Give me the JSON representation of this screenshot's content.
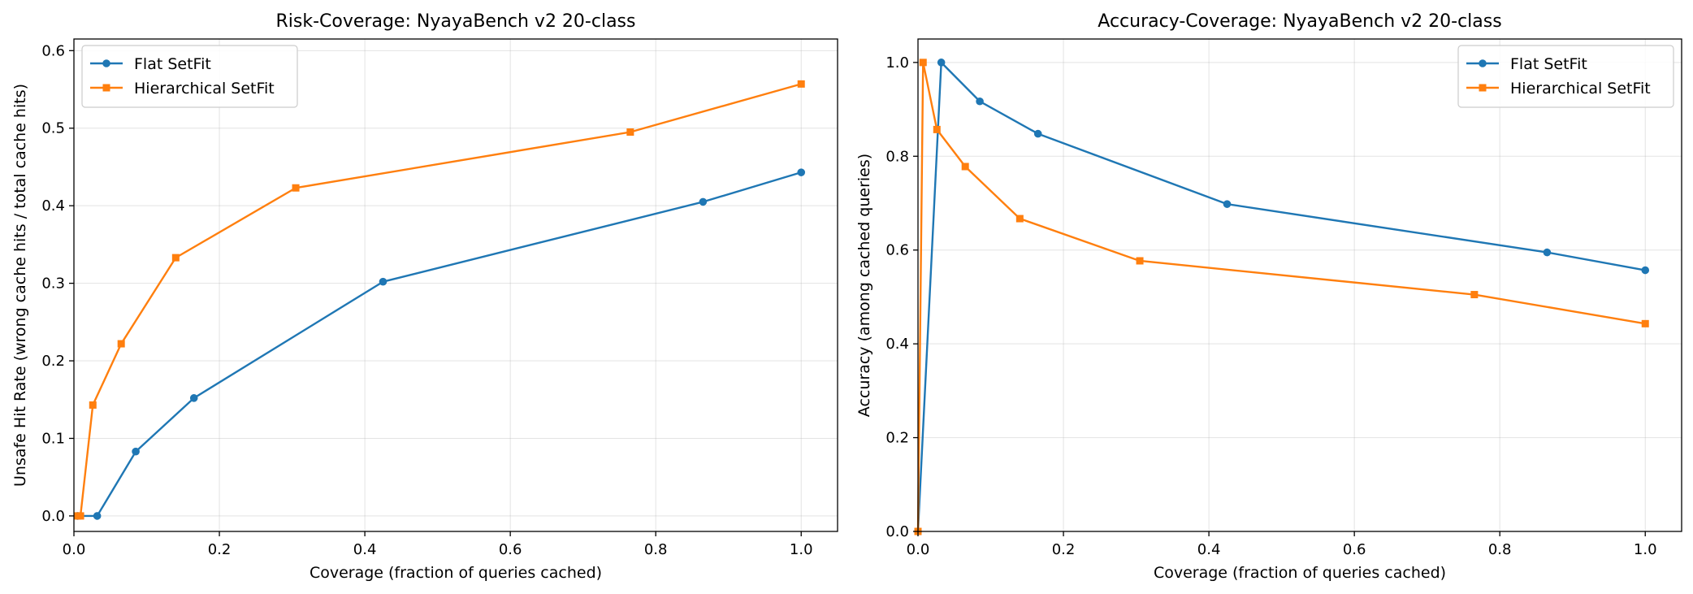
{
  "chart_data": [
    {
      "type": "line",
      "title": "Risk-Coverage: NyayaBench v2 20-class",
      "xlabel": "Coverage (fraction of queries cached)",
      "ylabel": "Unsafe Hit Rate (wrong cache hits / total cache hits)",
      "xlim": [
        0.0,
        1.05
      ],
      "ylim": [
        -0.02,
        0.615
      ],
      "xticks": [
        0.0,
        0.2,
        0.4,
        0.6,
        0.8,
        1.0
      ],
      "xtick_labels": [
        "0.0",
        "0.2",
        "0.4",
        "0.6",
        "0.8",
        "1.0"
      ],
      "yticks": [
        0.0,
        0.1,
        0.2,
        0.3,
        0.4,
        0.5,
        0.6
      ],
      "ytick_labels": [
        "0.0",
        "0.1",
        "0.2",
        "0.3",
        "0.4",
        "0.5",
        "0.6"
      ],
      "grid": true,
      "legend_position": "top-left",
      "series": [
        {
          "name": "Flat SetFit",
          "color": "#1f77b4",
          "marker": "circle",
          "x": [
            0.005,
            0.032,
            0.085,
            0.165,
            0.425,
            0.865,
            1.0
          ],
          "y": [
            0.0,
            0.0,
            0.083,
            0.152,
            0.302,
            0.405,
            0.443
          ]
        },
        {
          "name": "Hierarchical SetFit",
          "color": "#ff7f0e",
          "marker": "square",
          "x": [
            0.005,
            0.009,
            0.026,
            0.065,
            0.14,
            0.305,
            0.765,
            1.0
          ],
          "y": [
            0.0,
            0.0,
            0.143,
            0.222,
            0.333,
            0.423,
            0.495,
            0.557
          ]
        }
      ]
    },
    {
      "type": "line",
      "title": "Accuracy-Coverage: NyayaBench v2 20-class",
      "xlabel": "Coverage (fraction of queries cached)",
      "ylabel": "Accuracy (among cached queries)",
      "xlim": [
        0.0,
        1.05
      ],
      "ylim": [
        0.0,
        1.05
      ],
      "xticks": [
        0.0,
        0.2,
        0.4,
        0.6,
        0.8,
        1.0
      ],
      "xtick_labels": [
        "0.0",
        "0.2",
        "0.4",
        "0.6",
        "0.8",
        "1.0"
      ],
      "yticks": [
        0.0,
        0.2,
        0.4,
        0.6,
        0.8,
        1.0
      ],
      "ytick_labels": [
        "0.0",
        "0.2",
        "0.4",
        "0.6",
        "0.8",
        "1.0"
      ],
      "grid": true,
      "legend_position": "top-right",
      "series": [
        {
          "name": "Flat SetFit",
          "color": "#1f77b4",
          "marker": "circle",
          "x": [
            0.0,
            0.032,
            0.085,
            0.165,
            0.425,
            0.865,
            1.0
          ],
          "y": [
            0.0,
            1.0,
            0.917,
            0.848,
            0.698,
            0.595,
            0.557
          ]
        },
        {
          "name": "Hierarchical SetFit",
          "color": "#ff7f0e",
          "marker": "square",
          "x": [
            0.0,
            0.007,
            0.026,
            0.065,
            0.14,
            0.305,
            0.765,
            1.0
          ],
          "y": [
            0.0,
            1.0,
            0.857,
            0.778,
            0.667,
            0.577,
            0.505,
            0.443
          ]
        }
      ]
    }
  ]
}
